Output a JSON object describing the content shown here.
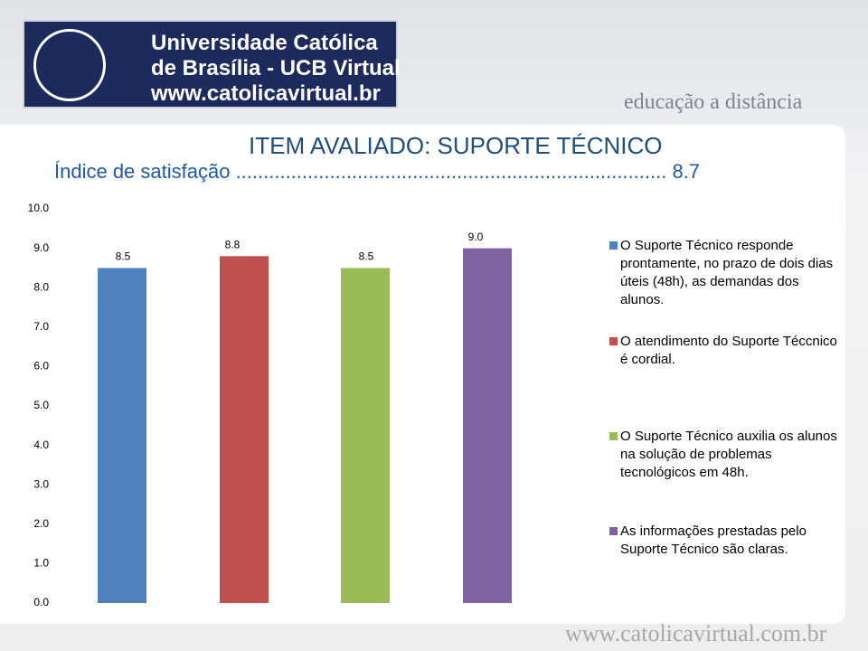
{
  "header": {
    "line1": "Universidade Católica",
    "line2": "de Brasília - UCB Virtual",
    "line3": "www.catolicavirtual.br",
    "tagline": "educação a distância"
  },
  "footer": "www.catolicavirtual.com.br",
  "chart_data": {
    "type": "bar",
    "title": "ITEM AVALIADO: SUPORTE TÉCNICO",
    "subtitle": "Índice de satisfação .............................................................................. 8.7",
    "categories": [
      null
    ],
    "series": [
      {
        "name": "O Suporte Técnico responde prontamente, no prazo de dois dias úteis (48h), as demandas dos alunos.",
        "color": "#4f81bd",
        "values": [
          8.5
        ],
        "value_labels": [
          "8.5"
        ]
      },
      {
        "name": "O atendimento do Suporte Téccnico é cordial.",
        "color": "#c0504d",
        "values": [
          8.8
        ],
        "value_labels": [
          "8.8"
        ]
      },
      {
        "name": "O Suporte Técnico auxilia os alunos na solução de problemas tecnológicos em 48h.",
        "color": "#9bbb59",
        "values": [
          8.5
        ],
        "value_labels": [
          "8.5"
        ]
      },
      {
        "name": "As informações prestadas pelo Suporte Técnico são claras.",
        "color": "#8064a2",
        "values": [
          9.0
        ],
        "value_labels": [
          "9.0"
        ]
      }
    ],
    "ylim": [
      0,
      10
    ],
    "yticks": [
      {
        "value": 0,
        "label": "0.0"
      },
      {
        "value": 1,
        "label": "1.0"
      },
      {
        "value": 2,
        "label": "2.0"
      },
      {
        "value": 3,
        "label": "3.0"
      },
      {
        "value": 4,
        "label": "4.0"
      },
      {
        "value": 5,
        "label": "5.0"
      },
      {
        "value": 6,
        "label": "6.0"
      },
      {
        "value": 7,
        "label": "7.0"
      },
      {
        "value": 8,
        "label": "8.0"
      },
      {
        "value": 9,
        "label": "9.0"
      },
      {
        "value": 10,
        "label": "10.0"
      }
    ],
    "legend": "right"
  }
}
